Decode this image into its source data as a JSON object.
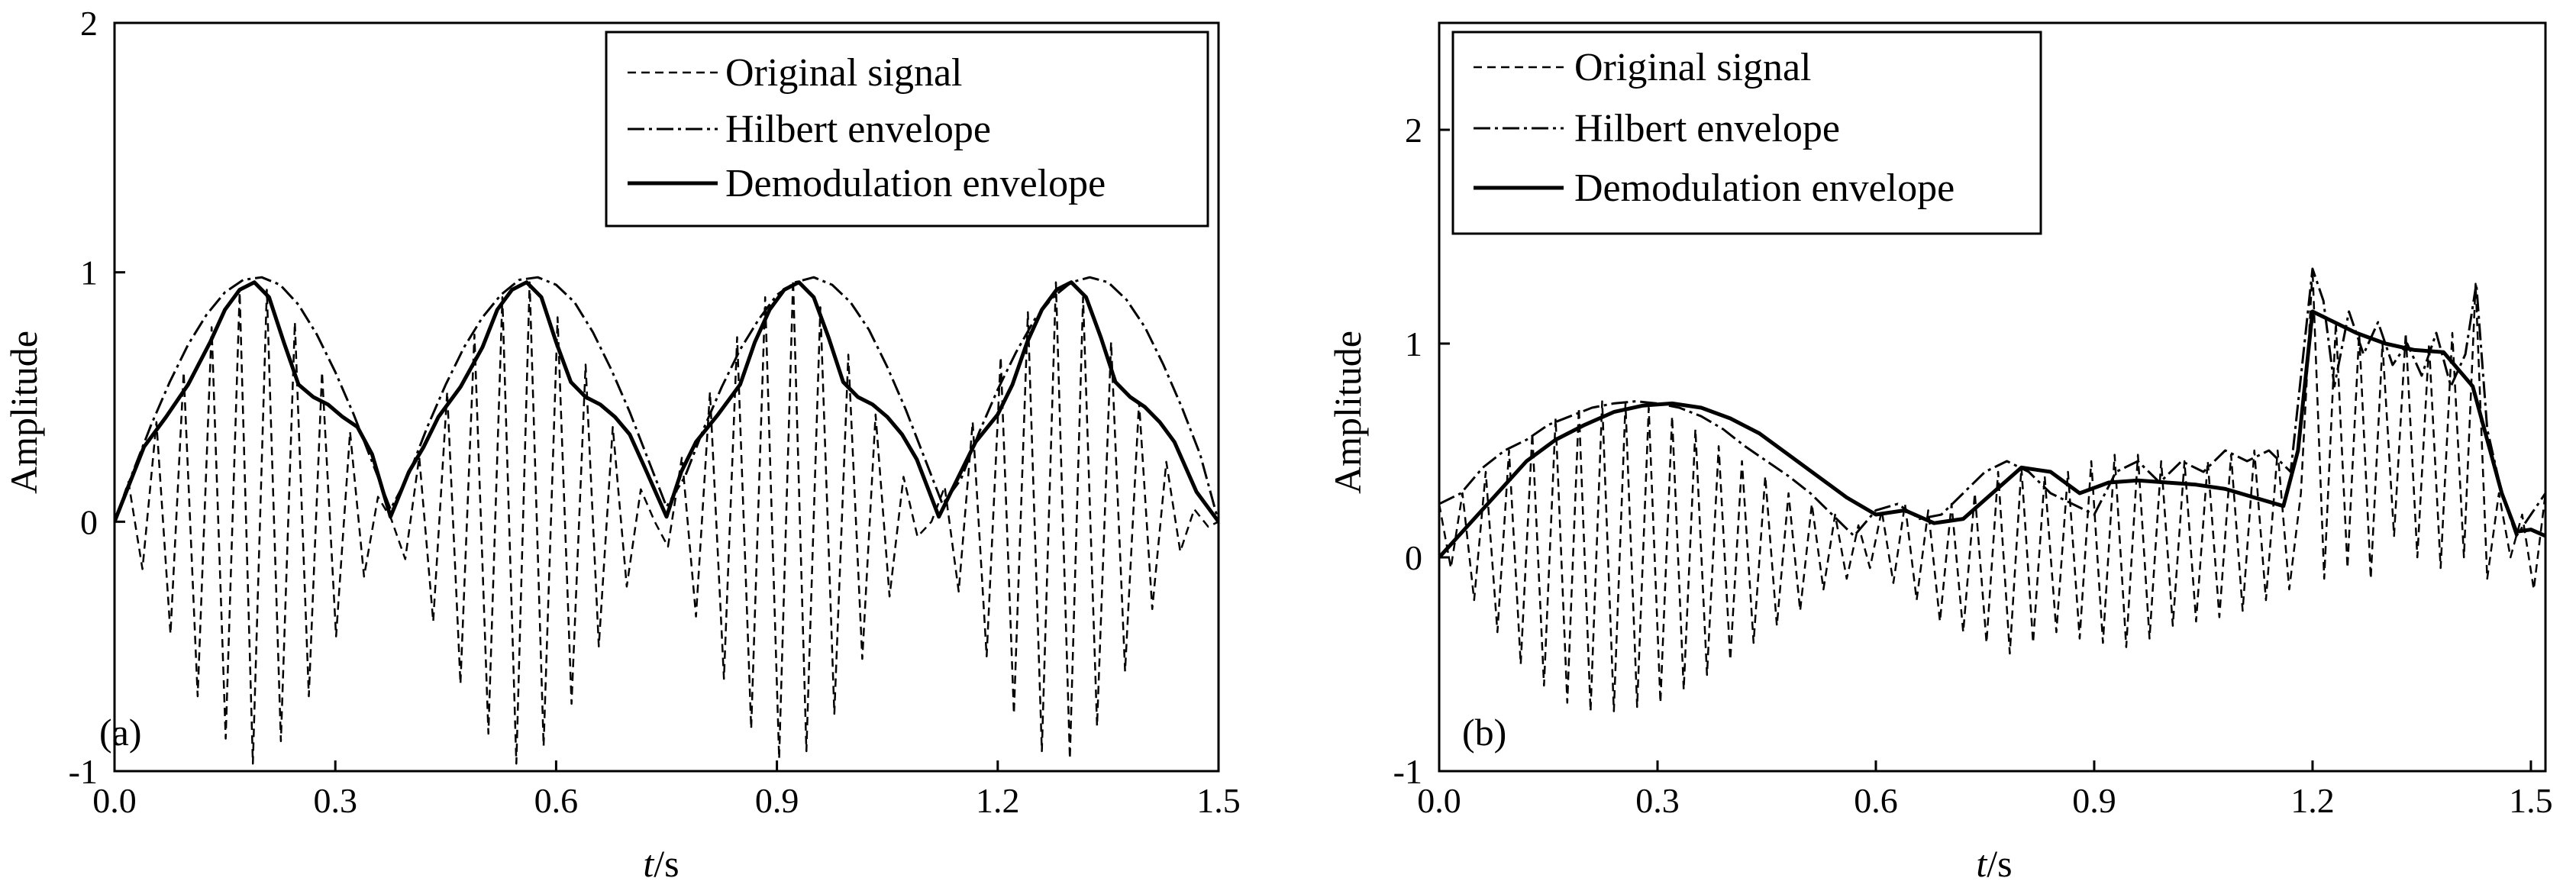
{
  "chart_data": [
    {
      "type": "line",
      "panel_label": "(a)",
      "xlabel": "t/s",
      "ylabel": "Amplitude",
      "xlim": [
        0,
        1.5
      ],
      "ylim": [
        -1,
        2
      ],
      "xticks": [
        "0.0",
        "0.3",
        "0.6",
        "0.9",
        "1.2",
        "1.5"
      ],
      "xtick_values": [
        0,
        0.3,
        0.6,
        0.9,
        1.2,
        1.5
      ],
      "yticks": [
        "-1",
        "0",
        "1",
        "2"
      ],
      "ytick_values": [
        -1,
        0,
        1,
        2
      ],
      "legend": {
        "placement": "top-right"
      },
      "series": [
        {
          "name": "Original signal",
          "style": "dashed",
          "x": [
            0.0,
            0.019,
            0.038,
            0.057,
            0.076,
            0.094,
            0.113,
            0.132,
            0.151,
            0.17,
            0.188,
            0.207,
            0.226,
            0.245,
            0.264,
            0.282,
            0.301,
            0.32,
            0.339,
            0.358,
            0.376,
            0.395,
            0.414,
            0.433,
            0.452,
            0.47,
            0.489,
            0.508,
            0.527,
            0.546,
            0.564,
            0.583,
            0.602,
            0.621,
            0.64,
            0.658,
            0.677,
            0.696,
            0.715,
            0.734,
            0.752,
            0.771,
            0.79,
            0.809,
            0.828,
            0.846,
            0.865,
            0.884,
            0.903,
            0.922,
            0.94,
            0.959,
            0.978,
            0.997,
            1.016,
            1.034,
            1.053,
            1.072,
            1.091,
            1.11,
            1.128,
            1.147,
            1.166,
            1.185,
            1.204,
            1.222,
            1.241,
            1.26,
            1.279,
            1.298,
            1.316,
            1.335,
            1.354,
            1.373,
            1.392,
            1.41,
            1.429,
            1.448,
            1.467,
            1.486,
            1.5
          ],
          "y": [
            0.0,
            0.16,
            -0.19,
            0.4,
            -0.45,
            0.6,
            -0.7,
            0.78,
            -0.87,
            0.92,
            -0.97,
            0.93,
            -0.88,
            0.8,
            -0.7,
            0.6,
            -0.46,
            0.36,
            -0.22,
            0.1,
            0.01,
            -0.15,
            0.26,
            -0.4,
            0.52,
            -0.65,
            0.75,
            -0.85,
            0.9,
            -0.97,
            0.96,
            -0.9,
            0.82,
            -0.73,
            0.63,
            -0.5,
            0.38,
            -0.26,
            0.13,
            0.0,
            -0.1,
            0.26,
            -0.38,
            0.52,
            -0.63,
            0.74,
            -0.83,
            0.9,
            -0.95,
            0.97,
            -0.92,
            0.86,
            -0.77,
            0.67,
            -0.55,
            0.43,
            -0.3,
            0.18,
            -0.06,
            0.0,
            0.14,
            -0.28,
            0.4,
            -0.54,
            0.66,
            -0.77,
            0.84,
            -0.92,
            0.96,
            -0.95,
            0.9,
            -0.82,
            0.72,
            -0.6,
            0.48,
            -0.35,
            0.24,
            -0.12,
            0.05,
            -0.02,
            0.0
          ]
        },
        {
          "name": "Hilbert envelope",
          "style": "dashdot",
          "x": [
            0.0,
            0.025,
            0.05,
            0.075,
            0.1,
            0.125,
            0.15,
            0.175,
            0.2,
            0.225,
            0.25,
            0.275,
            0.3,
            0.325,
            0.35,
            0.375,
            0.4,
            0.425,
            0.45,
            0.475,
            0.5,
            0.525,
            0.55,
            0.575,
            0.6,
            0.625,
            0.65,
            0.675,
            0.7,
            0.725,
            0.75,
            0.775,
            0.8,
            0.825,
            0.85,
            0.875,
            0.9,
            0.925,
            0.95,
            0.975,
            1.0,
            1.025,
            1.05,
            1.075,
            1.1,
            1.125,
            1.15,
            1.175,
            1.2,
            1.225,
            1.25,
            1.275,
            1.3,
            1.325,
            1.35,
            1.375,
            1.4,
            1.425,
            1.45,
            1.475,
            1.5
          ],
          "y": [
            0.0,
            0.2,
            0.39,
            0.56,
            0.71,
            0.83,
            0.92,
            0.97,
            0.98,
            0.95,
            0.87,
            0.75,
            0.6,
            0.43,
            0.24,
            0.05,
            0.19,
            0.38,
            0.55,
            0.7,
            0.82,
            0.91,
            0.97,
            0.98,
            0.95,
            0.88,
            0.76,
            0.61,
            0.44,
            0.25,
            0.06,
            0.18,
            0.37,
            0.54,
            0.69,
            0.81,
            0.91,
            0.96,
            0.98,
            0.95,
            0.88,
            0.77,
            0.62,
            0.45,
            0.26,
            0.07,
            0.17,
            0.36,
            0.53,
            0.68,
            0.81,
            0.9,
            0.96,
            0.98,
            0.96,
            0.89,
            0.78,
            0.63,
            0.46,
            0.27,
            0.0
          ]
        },
        {
          "name": "Demodulation envelope",
          "style": "solid",
          "x": [
            0.0,
            0.02,
            0.04,
            0.07,
            0.1,
            0.13,
            0.15,
            0.17,
            0.19,
            0.21,
            0.23,
            0.25,
            0.27,
            0.29,
            0.31,
            0.33,
            0.35,
            0.375,
            0.4,
            0.42,
            0.44,
            0.47,
            0.5,
            0.52,
            0.54,
            0.56,
            0.58,
            0.6,
            0.62,
            0.64,
            0.66,
            0.68,
            0.7,
            0.72,
            0.75,
            0.77,
            0.79,
            0.82,
            0.85,
            0.87,
            0.89,
            0.91,
            0.93,
            0.95,
            0.97,
            0.99,
            1.01,
            1.03,
            1.05,
            1.07,
            1.09,
            1.12,
            1.15,
            1.17,
            1.2,
            1.22,
            1.24,
            1.26,
            1.28,
            1.3,
            1.32,
            1.34,
            1.36,
            1.38,
            1.4,
            1.42,
            1.44,
            1.47,
            1.5
          ],
          "y": [
            0.0,
            0.15,
            0.3,
            0.42,
            0.55,
            0.72,
            0.85,
            0.93,
            0.96,
            0.9,
            0.72,
            0.55,
            0.5,
            0.47,
            0.42,
            0.38,
            0.27,
            0.02,
            0.2,
            0.3,
            0.42,
            0.54,
            0.7,
            0.85,
            0.93,
            0.96,
            0.9,
            0.72,
            0.56,
            0.5,
            0.47,
            0.42,
            0.35,
            0.22,
            0.02,
            0.2,
            0.32,
            0.43,
            0.55,
            0.72,
            0.85,
            0.93,
            0.96,
            0.9,
            0.74,
            0.56,
            0.5,
            0.47,
            0.42,
            0.35,
            0.25,
            0.02,
            0.2,
            0.32,
            0.43,
            0.55,
            0.72,
            0.85,
            0.93,
            0.96,
            0.9,
            0.74,
            0.56,
            0.5,
            0.46,
            0.4,
            0.32,
            0.12,
            0.0
          ]
        }
      ]
    },
    {
      "type": "line",
      "panel_label": "(b)",
      "xlabel": "t/s",
      "ylabel": "Amplitude",
      "xlim": [
        0,
        1.52
      ],
      "ylim": [
        -1,
        2.5
      ],
      "xticks": [
        "0.0",
        "0.3",
        "0.6",
        "0.9",
        "1.2",
        "1.5"
      ],
      "xtick_values": [
        0,
        0.3,
        0.6,
        0.9,
        1.2,
        1.5
      ],
      "yticks": [
        "-1",
        "0",
        "1",
        "2"
      ],
      "ytick_values": [
        -1,
        0,
        1,
        2
      ],
      "legend": {
        "placement": "top-left"
      },
      "series": [
        {
          "name": "Original signal",
          "style": "dashed",
          "x": [
            0.0,
            0.016,
            0.032,
            0.048,
            0.064,
            0.08,
            0.096,
            0.112,
            0.128,
            0.144,
            0.16,
            0.176,
            0.192,
            0.208,
            0.224,
            0.24,
            0.256,
            0.272,
            0.288,
            0.304,
            0.32,
            0.336,
            0.352,
            0.368,
            0.384,
            0.4,
            0.416,
            0.432,
            0.448,
            0.464,
            0.48,
            0.496,
            0.512,
            0.528,
            0.544,
            0.56,
            0.576,
            0.592,
            0.608,
            0.624,
            0.64,
            0.656,
            0.672,
            0.688,
            0.704,
            0.72,
            0.736,
            0.752,
            0.768,
            0.784,
            0.8,
            0.816,
            0.832,
            0.848,
            0.864,
            0.88,
            0.896,
            0.912,
            0.928,
            0.944,
            0.96,
            0.976,
            0.992,
            1.008,
            1.024,
            1.04,
            1.056,
            1.072,
            1.088,
            1.104,
            1.12,
            1.136,
            1.152,
            1.168,
            1.184,
            1.2,
            1.216,
            1.232,
            1.248,
            1.264,
            1.28,
            1.296,
            1.312,
            1.328,
            1.344,
            1.36,
            1.376,
            1.392,
            1.408,
            1.424,
            1.44,
            1.456,
            1.472,
            1.488,
            1.504,
            1.52
          ],
          "y": [
            0.25,
            -0.05,
            0.3,
            -0.2,
            0.4,
            -0.35,
            0.5,
            -0.5,
            0.58,
            -0.6,
            0.65,
            -0.68,
            0.7,
            -0.72,
            0.73,
            -0.72,
            0.72,
            -0.7,
            0.7,
            -0.68,
            0.66,
            -0.62,
            0.6,
            -0.55,
            0.52,
            -0.48,
            0.45,
            -0.4,
            0.38,
            -0.32,
            0.3,
            -0.25,
            0.25,
            -0.15,
            0.2,
            -0.1,
            0.15,
            -0.05,
            0.22,
            -0.12,
            0.25,
            -0.2,
            0.22,
            -0.3,
            0.25,
            -0.35,
            0.3,
            -0.4,
            0.4,
            -0.45,
            0.42,
            -0.4,
            0.38,
            -0.35,
            0.4,
            -0.38,
            0.45,
            -0.4,
            0.48,
            -0.42,
            0.48,
            -0.38,
            0.45,
            -0.32,
            0.45,
            -0.3,
            0.45,
            -0.28,
            0.48,
            -0.25,
            0.5,
            -0.2,
            0.5,
            -0.15,
            0.3,
            1.35,
            -0.1,
            1.1,
            -0.05,
            1.05,
            -0.1,
            1.0,
            0.1,
            1.05,
            0.0,
            1.0,
            -0.05,
            1.05,
            0.0,
            1.28,
            -0.1,
            0.3,
            0.0,
            0.2,
            -0.15,
            0.3
          ]
        },
        {
          "name": "Hilbert envelope",
          "style": "dashdot",
          "x": [
            0.0,
            0.03,
            0.06,
            0.09,
            0.12,
            0.15,
            0.18,
            0.21,
            0.24,
            0.27,
            0.3,
            0.33,
            0.36,
            0.39,
            0.42,
            0.45,
            0.48,
            0.51,
            0.54,
            0.57,
            0.6,
            0.63,
            0.66,
            0.69,
            0.72,
            0.75,
            0.78,
            0.81,
            0.84,
            0.87,
            0.9,
            0.93,
            0.96,
            0.99,
            1.02,
            1.05,
            1.08,
            1.11,
            1.14,
            1.17,
            1.2,
            1.215,
            1.23,
            1.25,
            1.27,
            1.29,
            1.31,
            1.33,
            1.35,
            1.37,
            1.39,
            1.41,
            1.425,
            1.44,
            1.46,
            1.48,
            1.5,
            1.52
          ],
          "y": [
            0.25,
            0.3,
            0.42,
            0.5,
            0.55,
            0.62,
            0.66,
            0.7,
            0.72,
            0.73,
            0.72,
            0.7,
            0.66,
            0.6,
            0.52,
            0.45,
            0.38,
            0.3,
            0.2,
            0.1,
            0.22,
            0.25,
            0.18,
            0.2,
            0.3,
            0.4,
            0.45,
            0.4,
            0.3,
            0.25,
            0.2,
            0.4,
            0.45,
            0.35,
            0.45,
            0.4,
            0.5,
            0.45,
            0.5,
            0.4,
            1.35,
            1.2,
            0.8,
            1.15,
            0.95,
            1.1,
            0.9,
            1.0,
            0.85,
            1.05,
            0.8,
            0.95,
            1.28,
            0.6,
            0.3,
            0.1,
            0.2,
            0.3
          ]
        },
        {
          "name": "Demodulation envelope",
          "style": "solid",
          "x": [
            0.0,
            0.04,
            0.08,
            0.12,
            0.16,
            0.2,
            0.24,
            0.28,
            0.32,
            0.36,
            0.4,
            0.44,
            0.48,
            0.52,
            0.56,
            0.6,
            0.64,
            0.68,
            0.72,
            0.76,
            0.8,
            0.84,
            0.88,
            0.92,
            0.96,
            1.0,
            1.04,
            1.08,
            1.12,
            1.16,
            1.18,
            1.2,
            1.23,
            1.26,
            1.3,
            1.34,
            1.38,
            1.42,
            1.44,
            1.46,
            1.48,
            1.5,
            1.52
          ],
          "y": [
            0.0,
            0.15,
            0.3,
            0.45,
            0.55,
            0.62,
            0.68,
            0.71,
            0.72,
            0.7,
            0.65,
            0.58,
            0.48,
            0.38,
            0.28,
            0.2,
            0.22,
            0.16,
            0.18,
            0.3,
            0.42,
            0.4,
            0.3,
            0.35,
            0.36,
            0.35,
            0.34,
            0.32,
            0.28,
            0.24,
            0.5,
            1.15,
            1.1,
            1.05,
            1.0,
            0.97,
            0.96,
            0.8,
            0.55,
            0.3,
            0.12,
            0.13,
            0.1
          ]
        }
      ]
    }
  ]
}
